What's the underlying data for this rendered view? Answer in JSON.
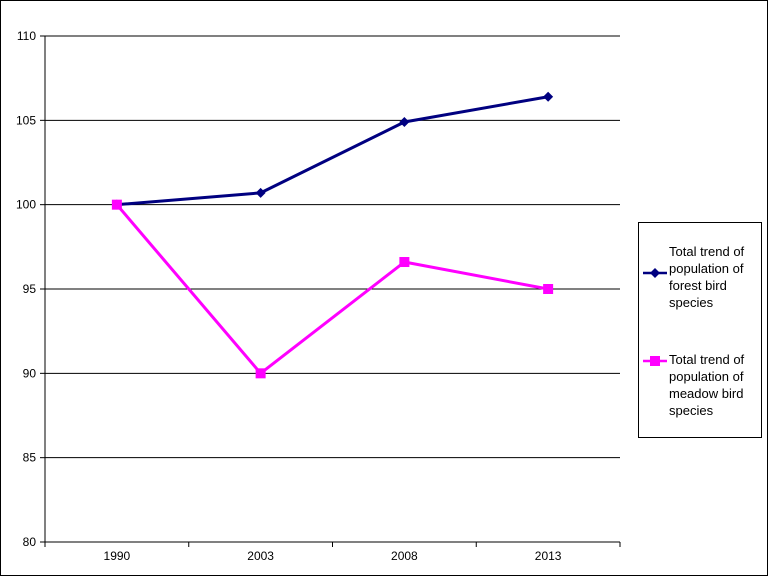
{
  "chart_data": {
    "type": "line",
    "title": "",
    "xlabel": "",
    "ylabel": "",
    "categories": [
      "1990",
      "2003",
      "2008",
      "2013"
    ],
    "ylim": [
      80,
      110
    ],
    "yticks": [
      80,
      85,
      90,
      95,
      100,
      105,
      110
    ],
    "grid": true,
    "legend_position": "right",
    "series": [
      {
        "name": "Total trend of population of forest bird species",
        "values": [
          100,
          100.7,
          104.9,
          106.4
        ],
        "color": "#000080",
        "marker": "diamond"
      },
      {
        "name": "Total trend of population of meadow bird species",
        "values": [
          100,
          90,
          96.6,
          95
        ],
        "color": "#FF00FF",
        "marker": "square"
      }
    ]
  }
}
